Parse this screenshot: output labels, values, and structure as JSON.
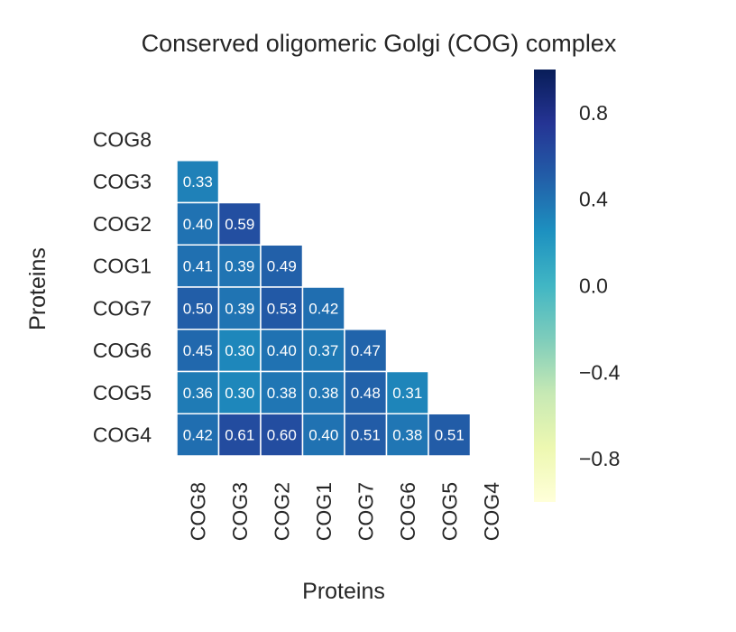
{
  "chart_data": {
    "type": "heatmap",
    "title": "Conserved oligomeric Golgi (COG) complex",
    "xlabel": "Proteins",
    "ylabel": "Proteins",
    "rows": [
      "COG8",
      "COG3",
      "COG2",
      "COG1",
      "COG7",
      "COG6",
      "COG5",
      "COG4"
    ],
    "columns": [
      "COG8",
      "COG3",
      "COG2",
      "COG1",
      "COG7",
      "COG6",
      "COG5",
      "COG4"
    ],
    "mask": "upper triangle including diagonal",
    "values": [
      [
        null,
        null,
        null,
        null,
        null,
        null,
        null,
        null
      ],
      [
        0.33,
        null,
        null,
        null,
        null,
        null,
        null,
        null
      ],
      [
        0.4,
        0.59,
        null,
        null,
        null,
        null,
        null,
        null
      ],
      [
        0.41,
        0.39,
        0.49,
        null,
        null,
        null,
        null,
        null
      ],
      [
        0.5,
        0.39,
        0.53,
        0.42,
        null,
        null,
        null,
        null
      ],
      [
        0.45,
        0.3,
        0.4,
        0.37,
        0.47,
        null,
        null,
        null
      ],
      [
        0.36,
        0.3,
        0.38,
        0.38,
        0.48,
        0.31,
        null,
        null
      ],
      [
        0.42,
        0.61,
        0.6,
        0.4,
        0.51,
        0.38,
        0.51,
        null
      ]
    ],
    "colormap": "YlGnBu",
    "vmin": -1,
    "vmax": 1,
    "colorbar_ticks": [
      "0.8",
      "0.4",
      "0.0",
      "−0.4",
      "−0.8"
    ],
    "colorbar_tick_values": [
      0.8,
      0.4,
      0.0,
      -0.4,
      -0.8
    ],
    "cell_border_color": "#ffffff"
  }
}
